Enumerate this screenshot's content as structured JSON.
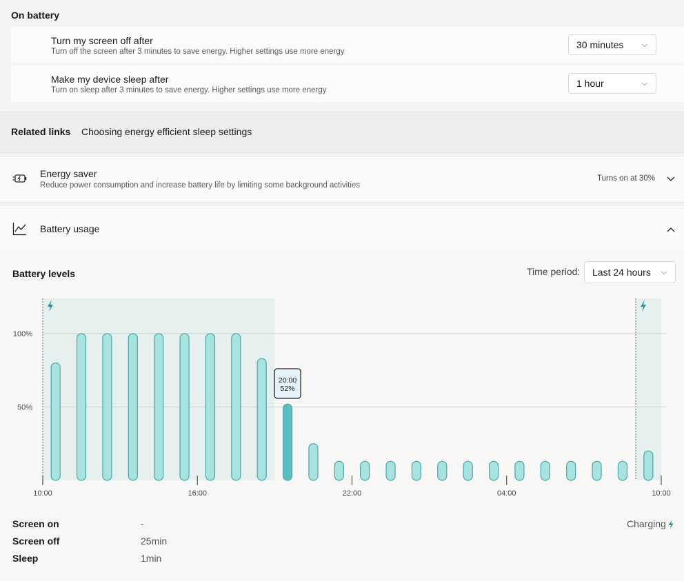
{
  "on_battery": {
    "title": "On battery",
    "screen_off": {
      "title": "Turn my screen off after",
      "desc": "Turn off the screen after 3 minutes to save energy. Higher settings use more energy",
      "value": "30 minutes"
    },
    "sleep": {
      "title": "Make my device sleep after",
      "desc": "Turn on sleep after 3 minutes to save energy. Higher settings use more energy",
      "value": "1 hour"
    }
  },
  "related": {
    "label": "Related links",
    "link": "Choosing energy efficient sleep settings"
  },
  "energy_saver": {
    "title": "Energy saver",
    "desc": "Reduce power consumption and increase battery life by limiting some background activities",
    "status": "Turns on at 30%"
  },
  "battery_usage": {
    "title": "Battery usage"
  },
  "battery_levels": {
    "title": "Battery levels",
    "time_period_label": "Time period:",
    "time_period_value": "Last 24 hours"
  },
  "chart_data": {
    "type": "bar",
    "x_ticks": [
      "10:00",
      "16:00",
      "22:00",
      "04:00",
      "10:00"
    ],
    "y_ticks": [
      "100%",
      "50%"
    ],
    "ylim": [
      0,
      100
    ],
    "values": [
      80,
      100,
      100,
      100,
      100,
      100,
      100,
      100,
      83,
      52,
      25,
      13,
      13,
      13,
      13,
      13,
      13,
      13,
      13,
      13,
      13,
      13,
      13,
      20
    ],
    "selected_index": 9,
    "tooltip": {
      "time": "20:00",
      "value": "52%"
    }
  },
  "stats": [
    {
      "label": "Screen on",
      "value": "-"
    },
    {
      "label": "Screen off",
      "value": "25min"
    },
    {
      "label": "Sleep",
      "value": "1min"
    }
  ],
  "legend": {
    "charging": "Charging"
  },
  "colors": {
    "bar": "#a9e3e0",
    "bar_border": "#4aa5a9",
    "selected": "#5cbec2",
    "charging_bg": "#e6f0ee",
    "bolt": "#2f8e94"
  }
}
